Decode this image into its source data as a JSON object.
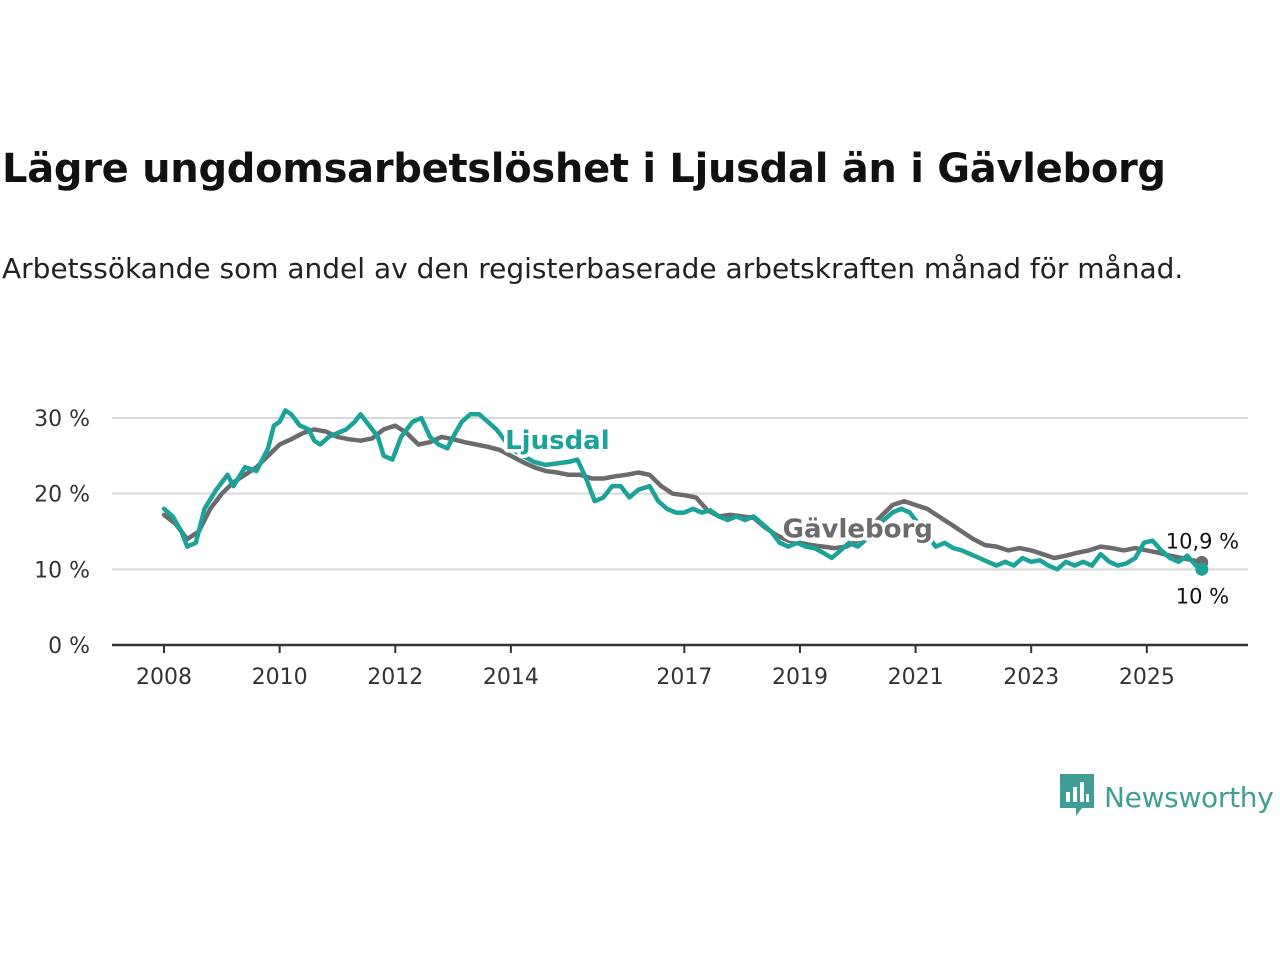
{
  "title": "Lägre ungdomsarbetslöshet i Ljusdal än i Gävleborg",
  "subtitle": "Arbetssökande som andel av den registerbaserade arbetskraften månad för månad.",
  "brand": {
    "name": "Newsworthy",
    "icon": "newsworthy-logo-icon"
  },
  "colors": {
    "ljusdal": "#1ba39a",
    "gavleborg": "#6b6b6e",
    "grid": "#d9d9d9",
    "axis": "#333333"
  },
  "chart_data": {
    "type": "line",
    "title": "Lägre ungdomsarbetslöshet i Ljusdal än i Gävleborg",
    "xlabel": "",
    "ylabel": "",
    "xlim": [
      2007.1,
      2026.75
    ],
    "ylim": [
      0,
      30
    ],
    "y_ticks": [
      0,
      10,
      20,
      30
    ],
    "y_tick_labels": [
      "0 %",
      "10 %",
      "20 %",
      "30 %"
    ],
    "x_ticks": [
      2008,
      2010,
      2012,
      2014,
      2017,
      2019,
      2021,
      2023,
      2025
    ],
    "x_tick_labels": [
      "2008",
      "2010",
      "2012",
      "2014",
      "2017",
      "2019",
      "2021",
      "2023",
      "2025"
    ],
    "grid": true,
    "series": [
      {
        "name": "Gävleborg",
        "label": "Gävleborg",
        "end_label": "10,9 %",
        "points": [
          [
            2008.0,
            17.2
          ],
          [
            2008.2,
            16.0
          ],
          [
            2008.4,
            14.0
          ],
          [
            2008.6,
            15.0
          ],
          [
            2008.8,
            18.0
          ],
          [
            2009.0,
            20.0
          ],
          [
            2009.2,
            21.5
          ],
          [
            2009.4,
            22.5
          ],
          [
            2009.6,
            23.5
          ],
          [
            2009.8,
            25.0
          ],
          [
            2010.0,
            26.5
          ],
          [
            2010.2,
            27.2
          ],
          [
            2010.4,
            28.0
          ],
          [
            2010.6,
            28.5
          ],
          [
            2010.8,
            28.2
          ],
          [
            2011.0,
            27.5
          ],
          [
            2011.2,
            27.2
          ],
          [
            2011.4,
            27.0
          ],
          [
            2011.6,
            27.3
          ],
          [
            2011.8,
            28.5
          ],
          [
            2012.0,
            29.0
          ],
          [
            2012.2,
            28.0
          ],
          [
            2012.4,
            26.5
          ],
          [
            2012.6,
            26.8
          ],
          [
            2012.8,
            27.5
          ],
          [
            2013.0,
            27.2
          ],
          [
            2013.2,
            26.8
          ],
          [
            2013.4,
            26.5
          ],
          [
            2013.6,
            26.2
          ],
          [
            2013.8,
            25.8
          ],
          [
            2014.0,
            25.0
          ],
          [
            2014.2,
            24.2
          ],
          [
            2014.4,
            23.5
          ],
          [
            2014.6,
            23.0
          ],
          [
            2014.8,
            22.8
          ],
          [
            2015.0,
            22.5
          ],
          [
            2015.2,
            22.5
          ],
          [
            2015.4,
            22.0
          ],
          [
            2015.6,
            22.0
          ],
          [
            2015.8,
            22.3
          ],
          [
            2016.0,
            22.5
          ],
          [
            2016.2,
            22.8
          ],
          [
            2016.4,
            22.5
          ],
          [
            2016.6,
            21.0
          ],
          [
            2016.8,
            20.0
          ],
          [
            2017.0,
            19.8
          ],
          [
            2017.2,
            19.5
          ],
          [
            2017.4,
            17.8
          ],
          [
            2017.6,
            17.0
          ],
          [
            2017.8,
            17.2
          ],
          [
            2018.0,
            17.0
          ],
          [
            2018.2,
            16.8
          ],
          [
            2018.4,
            15.5
          ],
          [
            2018.6,
            14.5
          ],
          [
            2018.8,
            13.8
          ],
          [
            2019.0,
            13.5
          ],
          [
            2019.2,
            13.2
          ],
          [
            2019.4,
            13.0
          ],
          [
            2019.6,
            12.8
          ],
          [
            2019.8,
            13.0
          ],
          [
            2020.0,
            13.8
          ],
          [
            2020.2,
            15.5
          ],
          [
            2020.4,
            17.0
          ],
          [
            2020.6,
            18.5
          ],
          [
            2020.8,
            19.0
          ],
          [
            2021.0,
            18.5
          ],
          [
            2021.2,
            18.0
          ],
          [
            2021.4,
            17.0
          ],
          [
            2021.6,
            16.0
          ],
          [
            2021.8,
            15.0
          ],
          [
            2022.0,
            14.0
          ],
          [
            2022.2,
            13.2
          ],
          [
            2022.4,
            13.0
          ],
          [
            2022.6,
            12.5
          ],
          [
            2022.8,
            12.8
          ],
          [
            2023.0,
            12.5
          ],
          [
            2023.2,
            12.0
          ],
          [
            2023.4,
            11.5
          ],
          [
            2023.6,
            11.8
          ],
          [
            2023.8,
            12.2
          ],
          [
            2024.0,
            12.5
          ],
          [
            2024.2,
            13.0
          ],
          [
            2024.4,
            12.8
          ],
          [
            2024.6,
            12.5
          ],
          [
            2024.8,
            12.8
          ],
          [
            2025.0,
            12.5
          ],
          [
            2025.2,
            12.2
          ],
          [
            2025.4,
            11.8
          ],
          [
            2025.6,
            11.5
          ],
          [
            2025.8,
            11.2
          ],
          [
            2025.95,
            10.9
          ]
        ]
      },
      {
        "name": "Ljusdal",
        "label": "Ljusdal",
        "end_label": "10 %",
        "points": [
          [
            2008.0,
            18.0
          ],
          [
            2008.15,
            17.0
          ],
          [
            2008.3,
            15.0
          ],
          [
            2008.4,
            13.0
          ],
          [
            2008.55,
            13.5
          ],
          [
            2008.7,
            18.0
          ],
          [
            2008.9,
            20.5
          ],
          [
            2009.1,
            22.5
          ],
          [
            2009.2,
            21.0
          ],
          [
            2009.4,
            23.5
          ],
          [
            2009.6,
            23.0
          ],
          [
            2009.8,
            26.0
          ],
          [
            2009.9,
            29.0
          ],
          [
            2010.0,
            29.5
          ],
          [
            2010.1,
            31.0
          ],
          [
            2010.2,
            30.5
          ],
          [
            2010.35,
            29.0
          ],
          [
            2010.5,
            28.5
          ],
          [
            2010.6,
            27.0
          ],
          [
            2010.7,
            26.5
          ],
          [
            2010.85,
            27.5
          ],
          [
            2011.0,
            28.0
          ],
          [
            2011.15,
            28.5
          ],
          [
            2011.3,
            29.5
          ],
          [
            2011.4,
            30.5
          ],
          [
            2011.55,
            29.0
          ],
          [
            2011.7,
            27.5
          ],
          [
            2011.8,
            25.0
          ],
          [
            2011.95,
            24.5
          ],
          [
            2012.1,
            27.5
          ],
          [
            2012.3,
            29.5
          ],
          [
            2012.45,
            30.0
          ],
          [
            2012.6,
            27.5
          ],
          [
            2012.75,
            26.5
          ],
          [
            2012.9,
            26.0
          ],
          [
            2013.0,
            27.5
          ],
          [
            2013.15,
            29.5
          ],
          [
            2013.3,
            30.5
          ],
          [
            2013.45,
            30.5
          ],
          [
            2013.6,
            29.5
          ],
          [
            2013.75,
            28.5
          ],
          [
            2013.9,
            27.0
          ],
          [
            2014.0,
            26.0
          ],
          [
            2014.2,
            25.0
          ],
          [
            2014.4,
            24.2
          ],
          [
            2014.6,
            23.8
          ],
          [
            2014.8,
            24.0
          ],
          [
            2015.0,
            24.2
          ],
          [
            2015.15,
            24.5
          ],
          [
            2015.3,
            22.0
          ],
          [
            2015.45,
            19.0
          ],
          [
            2015.6,
            19.5
          ],
          [
            2015.75,
            21.0
          ],
          [
            2015.9,
            21.0
          ],
          [
            2016.05,
            19.5
          ],
          [
            2016.2,
            20.5
          ],
          [
            2016.4,
            21.0
          ],
          [
            2016.55,
            19.0
          ],
          [
            2016.7,
            18.0
          ],
          [
            2016.85,
            17.5
          ],
          [
            2017.0,
            17.5
          ],
          [
            2017.15,
            18.0
          ],
          [
            2017.3,
            17.5
          ],
          [
            2017.45,
            17.8
          ],
          [
            2017.6,
            17.0
          ],
          [
            2017.75,
            16.5
          ],
          [
            2017.9,
            17.0
          ],
          [
            2018.05,
            16.5
          ],
          [
            2018.2,
            17.0
          ],
          [
            2018.35,
            16.0
          ],
          [
            2018.5,
            15.0
          ],
          [
            2018.65,
            13.5
          ],
          [
            2018.8,
            13.0
          ],
          [
            2018.95,
            13.5
          ],
          [
            2019.1,
            13.0
          ],
          [
            2019.25,
            12.8
          ],
          [
            2019.4,
            12.2
          ],
          [
            2019.55,
            11.5
          ],
          [
            2019.7,
            12.5
          ],
          [
            2019.85,
            13.5
          ],
          [
            2020.0,
            13.0
          ],
          [
            2020.15,
            14.0
          ],
          [
            2020.3,
            15.5
          ],
          [
            2020.45,
            16.5
          ],
          [
            2020.6,
            17.5
          ],
          [
            2020.75,
            18.0
          ],
          [
            2020.9,
            17.5
          ],
          [
            2021.05,
            16.0
          ],
          [
            2021.2,
            14.5
          ],
          [
            2021.35,
            13.0
          ],
          [
            2021.5,
            13.5
          ],
          [
            2021.65,
            12.8
          ],
          [
            2021.8,
            12.5
          ],
          [
            2021.95,
            12.0
          ],
          [
            2022.1,
            11.5
          ],
          [
            2022.25,
            11.0
          ],
          [
            2022.4,
            10.5
          ],
          [
            2022.55,
            11.0
          ],
          [
            2022.7,
            10.5
          ],
          [
            2022.85,
            11.5
          ],
          [
            2023.0,
            11.0
          ],
          [
            2023.15,
            11.2
          ],
          [
            2023.3,
            10.5
          ],
          [
            2023.45,
            10.0
          ],
          [
            2023.6,
            11.0
          ],
          [
            2023.75,
            10.5
          ],
          [
            2023.9,
            11.0
          ],
          [
            2024.05,
            10.5
          ],
          [
            2024.2,
            12.0
          ],
          [
            2024.35,
            11.0
          ],
          [
            2024.5,
            10.5
          ],
          [
            2024.65,
            10.8
          ],
          [
            2024.8,
            11.5
          ],
          [
            2024.95,
            13.5
          ],
          [
            2025.1,
            13.8
          ],
          [
            2025.25,
            12.5
          ],
          [
            2025.4,
            11.5
          ],
          [
            2025.55,
            11.0
          ],
          [
            2025.7,
            11.8
          ],
          [
            2025.85,
            10.5
          ],
          [
            2025.95,
            10.0
          ]
        ]
      }
    ]
  }
}
